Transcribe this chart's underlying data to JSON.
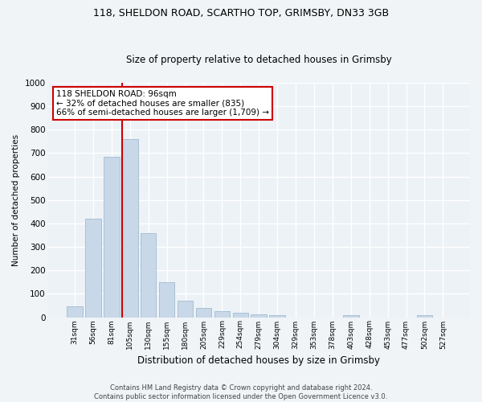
{
  "title1": "118, SHELDON ROAD, SCARTHO TOP, GRIMSBY, DN33 3GB",
  "title2": "Size of property relative to detached houses in Grimsby",
  "xlabel": "Distribution of detached houses by size in Grimsby",
  "ylabel": "Number of detached properties",
  "categories": [
    "31sqm",
    "56sqm",
    "81sqm",
    "105sqm",
    "130sqm",
    "155sqm",
    "180sqm",
    "205sqm",
    "229sqm",
    "254sqm",
    "279sqm",
    "304sqm",
    "329sqm",
    "353sqm",
    "378sqm",
    "403sqm",
    "428sqm",
    "453sqm",
    "477sqm",
    "502sqm",
    "527sqm"
  ],
  "values": [
    47,
    420,
    685,
    760,
    360,
    150,
    72,
    38,
    27,
    18,
    13,
    8,
    0,
    0,
    0,
    7,
    0,
    0,
    0,
    10,
    0
  ],
  "bar_color": "#c8d8e8",
  "bar_edge_color": "#a0bcd0",
  "vline_color": "#cc0000",
  "vline_x_index": 2.575,
  "annotation_text": "118 SHELDON ROAD: 96sqm\n← 32% of detached houses are smaller (835)\n66% of semi-detached houses are larger (1,709) →",
  "annotation_box_color": "#ffffff",
  "annotation_box_edge": "#cc0000",
  "ylim": [
    0,
    1000
  ],
  "yticks": [
    0,
    100,
    200,
    300,
    400,
    500,
    600,
    700,
    800,
    900,
    1000
  ],
  "bg_color": "#edf2f7",
  "grid_color": "#ffffff",
  "footer1": "Contains HM Land Registry data © Crown copyright and database right 2024.",
  "footer2": "Contains public sector information licensed under the Open Government Licence v3.0."
}
